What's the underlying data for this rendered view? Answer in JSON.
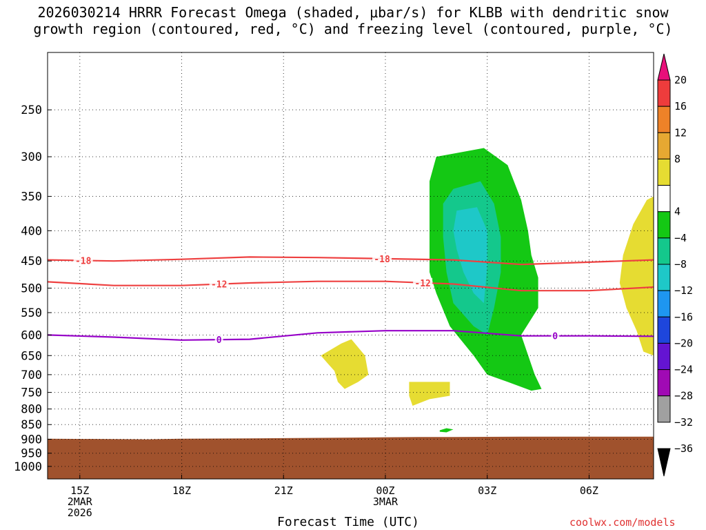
{
  "title": {
    "line1": "2026030214 HRRR Forecast Omega (shaded, μbar/s) for KLBB with dendritic snow",
    "line2": "growth region (contoured, red, °C) and freezing level (contoured, purple, °C)"
  },
  "credit": "coolwx.com/models",
  "chart_data": {
    "type": "contour",
    "xlabel": "Forecast Time (UTC)",
    "ylabel": "",
    "x_ticks": [
      {
        "hour": 15,
        "label": "15Z",
        "sub1": "2MAR",
        "sub2": "2026"
      },
      {
        "hour": 18,
        "label": "18Z",
        "sub1": "",
        "sub2": ""
      },
      {
        "hour": 21,
        "label": "21Z",
        "sub1": "",
        "sub2": ""
      },
      {
        "hour": 24,
        "label": "00Z",
        "sub1": "3MAR",
        "sub2": ""
      },
      {
        "hour": 27,
        "label": "03Z",
        "sub1": "",
        "sub2": ""
      },
      {
        "hour": 30,
        "label": "06Z",
        "sub1": "",
        "sub2": ""
      }
    ],
    "x_range": [
      14.05,
      31.9
    ],
    "y_axis": "pressure (hPa), log scale, inverted",
    "y_ticks": [
      250,
      300,
      350,
      400,
      450,
      500,
      550,
      600,
      650,
      700,
      750,
      800,
      850,
      900,
      950,
      1000
    ],
    "y_range": [
      200,
      1050
    ],
    "colorbar": {
      "labels": [
        "20",
        "16",
        "12",
        "8",
        "4",
        "−4",
        "−8",
        "−12",
        "−16",
        "−20",
        "−24",
        "−28",
        "−32",
        "−36"
      ],
      "bins": [
        {
          "lo": 20,
          "hi": 24,
          "color": "#e8107a"
        },
        {
          "lo": 16,
          "hi": 20,
          "color": "#ee3c3c"
        },
        {
          "lo": 12,
          "hi": 16,
          "color": "#ee8228"
        },
        {
          "lo": 8,
          "hi": 12,
          "color": "#e6a832"
        },
        {
          "lo": 4,
          "hi": 8,
          "color": "#e6dc32"
        },
        {
          "lo": -4,
          "hi": 4,
          "color": "#ffffff"
        },
        {
          "lo": -8,
          "hi": -4,
          "color": "#14c814"
        },
        {
          "lo": -12,
          "hi": -8,
          "color": "#14c88c"
        },
        {
          "lo": -16,
          "hi": -12,
          "color": "#1ec8c8"
        },
        {
          "lo": -20,
          "hi": -16,
          "color": "#1e96f0"
        },
        {
          "lo": -24,
          "hi": -20,
          "color": "#1e46dc"
        },
        {
          "lo": -28,
          "hi": -24,
          "color": "#6414d2"
        },
        {
          "lo": -32,
          "hi": -28,
          "color": "#a00ab4"
        },
        {
          "lo": -36,
          "hi": -32,
          "color": "#a0a0a0"
        },
        {
          "lo": -40,
          "hi": -36,
          "color": "#000000"
        }
      ]
    },
    "omega_regions": [
      {
        "name": "ascent-outer",
        "level": -4,
        "color": "#14c814",
        "points": [
          [
            25.5,
            300
          ],
          [
            26.9,
            290
          ],
          [
            27.6,
            310
          ],
          [
            28.0,
            355
          ],
          [
            28.2,
            400
          ],
          [
            28.3,
            440
          ],
          [
            28.5,
            480
          ],
          [
            28.5,
            540
          ],
          [
            28.0,
            600
          ],
          [
            28.4,
            700
          ],
          [
            28.6,
            740
          ],
          [
            28.3,
            745
          ],
          [
            27.6,
            720
          ],
          [
            27.0,
            700
          ],
          [
            26.6,
            650
          ],
          [
            25.9,
            580
          ],
          [
            25.5,
            510
          ],
          [
            25.3,
            470
          ],
          [
            25.3,
            420
          ],
          [
            25.3,
            370
          ],
          [
            25.3,
            330
          ]
        ]
      },
      {
        "name": "ascent-mid",
        "level": -8,
        "color": "#14c88c",
        "points": [
          [
            26.0,
            340
          ],
          [
            26.8,
            330
          ],
          [
            27.2,
            360
          ],
          [
            27.4,
            410
          ],
          [
            27.4,
            470
          ],
          [
            27.2,
            540
          ],
          [
            27.0,
            600
          ],
          [
            26.6,
            580
          ],
          [
            26.0,
            530
          ],
          [
            25.8,
            470
          ],
          [
            25.7,
            410
          ],
          [
            25.7,
            360
          ]
        ]
      },
      {
        "name": "ascent-core",
        "level": -12,
        "color": "#1ec8c8",
        "points": [
          [
            26.1,
            370
          ],
          [
            26.7,
            365
          ],
          [
            27.0,
            400
          ],
          [
            27.0,
            460
          ],
          [
            26.9,
            530
          ],
          [
            26.6,
            510
          ],
          [
            26.3,
            470
          ],
          [
            26.1,
            430
          ],
          [
            26.0,
            400
          ]
        ]
      },
      {
        "name": "ascent-small-cell",
        "level": -4,
        "color": "#14c814",
        "points": [
          [
            25.6,
            869
          ],
          [
            25.8,
            862
          ],
          [
            26.0,
            866
          ],
          [
            25.8,
            876
          ],
          [
            25.6,
            874
          ]
        ]
      },
      {
        "name": "descent-right-edge",
        "level": 4,
        "color": "#e6dc32",
        "points": [
          [
            31.9,
            350
          ],
          [
            31.9,
            650
          ],
          [
            31.6,
            640
          ],
          [
            31.4,
            590
          ],
          [
            31.1,
            540
          ],
          [
            30.9,
            490
          ],
          [
            31.0,
            440
          ],
          [
            31.3,
            390
          ],
          [
            31.7,
            355
          ]
        ]
      },
      {
        "name": "descent-cell-1",
        "level": 4,
        "color": "#e6dc32",
        "points": [
          [
            22.1,
            650
          ],
          [
            22.7,
            620
          ],
          [
            23.0,
            610
          ],
          [
            23.4,
            650
          ],
          [
            23.5,
            700
          ],
          [
            23.2,
            720
          ],
          [
            22.8,
            740
          ],
          [
            22.6,
            720
          ],
          [
            22.5,
            690
          ],
          [
            22.3,
            670
          ]
        ]
      },
      {
        "name": "descent-cell-2",
        "level": 4,
        "color": "#e6dc32",
        "points": [
          [
            24.7,
            720
          ],
          [
            25.9,
            720
          ],
          [
            25.9,
            760
          ],
          [
            25.3,
            770
          ],
          [
            24.8,
            790
          ],
          [
            24.7,
            760
          ]
        ]
      }
    ],
    "contours": [
      {
        "name": "dendritic-minus-18",
        "label": "-18",
        "color": "#ee4040",
        "x": [
          14.05,
          16,
          18,
          20,
          22,
          24,
          26,
          28,
          30,
          31.9
        ],
        "y": [
          448,
          450,
          447,
          443,
          444,
          446,
          448,
          456,
          452,
          448
        ],
        "label_x": [
          15.1,
          23.9
        ]
      },
      {
        "name": "dendritic-minus-12",
        "label": "-12",
        "color": "#ee4040",
        "x": [
          14.05,
          16,
          18,
          20,
          22,
          24,
          26,
          28,
          30,
          31.9
        ],
        "y": [
          488,
          495,
          495,
          490,
          487,
          487,
          492,
          505,
          505,
          498
        ],
        "label_x": [
          19.1,
          25.1
        ]
      },
      {
        "name": "freezing-level-0",
        "label": "0",
        "color": "#9600c8",
        "x": [
          14.05,
          16,
          18,
          20,
          22,
          24,
          26,
          28,
          30,
          31.9
        ],
        "y": [
          600,
          605,
          612,
          610,
          595,
          590,
          590,
          602,
          602,
          603
        ],
        "label_x": [
          19.1,
          29.0
        ]
      }
    ],
    "terrain": {
      "color": "#a0522d",
      "points": [
        [
          14.05,
          898
        ],
        [
          17.0,
          900
        ],
        [
          18.0,
          898
        ],
        [
          20.0,
          897
        ],
        [
          21.0,
          896
        ],
        [
          22.0,
          895
        ],
        [
          23.0,
          894
        ],
        [
          24.0,
          893
        ],
        [
          25.0,
          892
        ],
        [
          26.0,
          892
        ],
        [
          28.0,
          891
        ],
        [
          30.0,
          891
        ],
        [
          31.9,
          891
        ]
      ]
    }
  }
}
